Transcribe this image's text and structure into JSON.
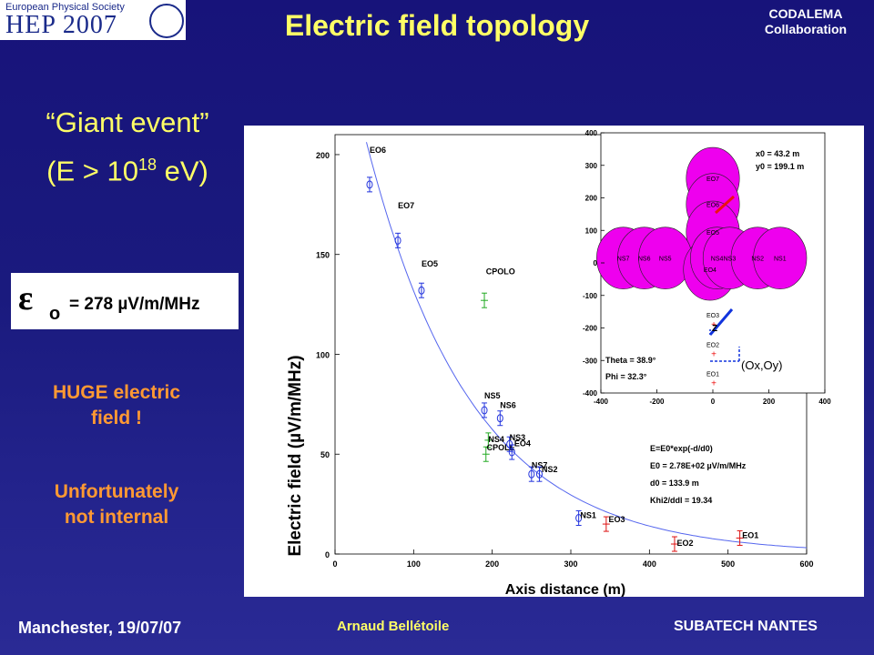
{
  "header": {
    "logo_line1": "European Physical Society",
    "logo_line2": "HEP 2007",
    "title": "Electric field topology",
    "collab_line1": "CODALEMA",
    "collab_line2": "Collaboration"
  },
  "left": {
    "giant_line1": "“Giant event”",
    "giant_line2_prefix": "(E > 10",
    "giant_line2_sup": "18",
    "giant_line2_suffix": " eV)",
    "epsilon_symbol": "ε",
    "epsilon_sub": "o",
    "epsilon_value": "= 278 µV/m/MHz",
    "huge_line1": "HUGE electric",
    "huge_line2": "field !",
    "unfort_line1": "Unfortunately",
    "unfort_line2": "not internal"
  },
  "footer": {
    "left": "Manchester, 19/07/07",
    "mid": "Arnaud Bellétoile",
    "right": "SUBATECH NANTES"
  },
  "chart_data": [
    {
      "type": "scatter",
      "xlabel": "Axis distance (m)",
      "ylabel": "Electric field (µV/m/MHz)",
      "xlim": [
        0,
        600
      ],
      "ylim": [
        0,
        210
      ],
      "xticks": [
        0,
        100,
        200,
        300,
        400,
        500,
        600
      ],
      "yticks": [
        0,
        50,
        100,
        150,
        200
      ],
      "colors": {
        "blue": "#2233dd",
        "red": "#dd1111",
        "green": "#22aa22",
        "curve": "#5566ee"
      },
      "fit_curve": {
        "E0": 278,
        "d0": 133.9
      },
      "fit_text": [
        "E=E0*exp(-d/d0)",
        "E0 = 2.78E+02 µV/m/MHz",
        "d0 = 133.9 m",
        "Khi2/ddl = 19.34"
      ],
      "points": [
        {
          "label": "EO6",
          "x": 44,
          "y": 185,
          "color": "blue",
          "lx": 44,
          "ly": 201
        },
        {
          "label": "EO7",
          "x": 80,
          "y": 157,
          "color": "blue",
          "lx": 80,
          "ly": 173
        },
        {
          "label": "EO5",
          "x": 110,
          "y": 132,
          "color": "blue",
          "lx": 110,
          "ly": 144
        },
        {
          "label": "CPOLO",
          "x": 190,
          "y": 127,
          "color": "green",
          "lx": 192,
          "ly": 140
        },
        {
          "label": "NS5",
          "x": 190,
          "y": 72,
          "color": "blue",
          "lx": 190,
          "ly": 78
        },
        {
          "label": "NS6",
          "x": 210,
          "y": 68,
          "color": "blue",
          "lx": 210,
          "ly": 73
        },
        {
          "label": "NS4",
          "x": 195,
          "y": 57,
          "color": "green",
          "lx": 195,
          "ly": 56
        },
        {
          "label": "NS3",
          "x": 222,
          "y": 55,
          "color": "blue",
          "lx": 222,
          "ly": 57
        },
        {
          "label": "CPOLE",
          "x": 192,
          "y": 50,
          "color": "green",
          "lx": 193,
          "ly": 52
        },
        {
          "label": "EO4",
          "x": 225,
          "y": 51,
          "color": "blue",
          "lx": 228,
          "ly": 54
        },
        {
          "label": "NS7",
          "x": 250,
          "y": 40,
          "color": "blue",
          "lx": 250,
          "ly": 43
        },
        {
          "label": "NS2",
          "x": 260,
          "y": 40,
          "color": "blue",
          "lx": 263,
          "ly": 41
        },
        {
          "label": "NS1",
          "x": 310,
          "y": 18,
          "color": "blue",
          "lx": 312,
          "ly": 18
        },
        {
          "label": "EO3",
          "x": 345,
          "y": 15,
          "color": "red",
          "lx": 348,
          "ly": 16
        },
        {
          "label": "EO2",
          "x": 432,
          "y": 5,
          "color": "red",
          "lx": 435,
          "ly": 4
        },
        {
          "label": "EO1",
          "x": 515,
          "y": 8,
          "color": "red",
          "lx": 518,
          "ly": 8
        }
      ]
    },
    {
      "type": "scatter",
      "title": "",
      "xlim": [
        -400,
        400
      ],
      "ylim": [
        -400,
        400
      ],
      "xticks": [
        -400,
        -200,
        0,
        200,
        400
      ],
      "yticks": [
        -400,
        -300,
        -200,
        -100,
        0,
        100,
        200,
        300,
        400
      ],
      "core_text": [
        "x0 = 43.2 m",
        "y0 = 199.1 m"
      ],
      "angle_text": [
        "Theta = 38.9°",
        "Phi = 32.3°"
      ],
      "z_label": "Z",
      "plane_label": "(Ox,Oy)",
      "circle_radius": 95,
      "antennas": [
        {
          "label": "EO7",
          "x": 0,
          "y": 260,
          "circle": true
        },
        {
          "label": "EO6",
          "x": 0,
          "y": 180,
          "circle": true
        },
        {
          "label": "EO5",
          "x": 0,
          "y": 95,
          "circle": true
        },
        {
          "label": "NS7",
          "x": -320,
          "y": 15,
          "circle": true
        },
        {
          "label": "NS6",
          "x": -245,
          "y": 15,
          "circle": true
        },
        {
          "label": "NS5",
          "x": -170,
          "y": 15,
          "circle": true
        },
        {
          "label": "EO4",
          "x": -10,
          "y": -20,
          "circle": true
        },
        {
          "label": "NS4",
          "x": 15,
          "y": 15,
          "circle": true
        },
        {
          "label": "NS3",
          "x": 60,
          "y": 15,
          "circle": true
        },
        {
          "label": "NS2",
          "x": 160,
          "y": 15,
          "circle": true
        },
        {
          "label": "NS1",
          "x": 240,
          "y": 15,
          "circle": true
        },
        {
          "label": "EO3",
          "x": 0,
          "y": -160,
          "circle": false
        },
        {
          "label": "EO2",
          "x": 0,
          "y": -250,
          "circle": false
        },
        {
          "label": "EO1",
          "x": 0,
          "y": -340,
          "circle": false
        }
      ]
    }
  ]
}
